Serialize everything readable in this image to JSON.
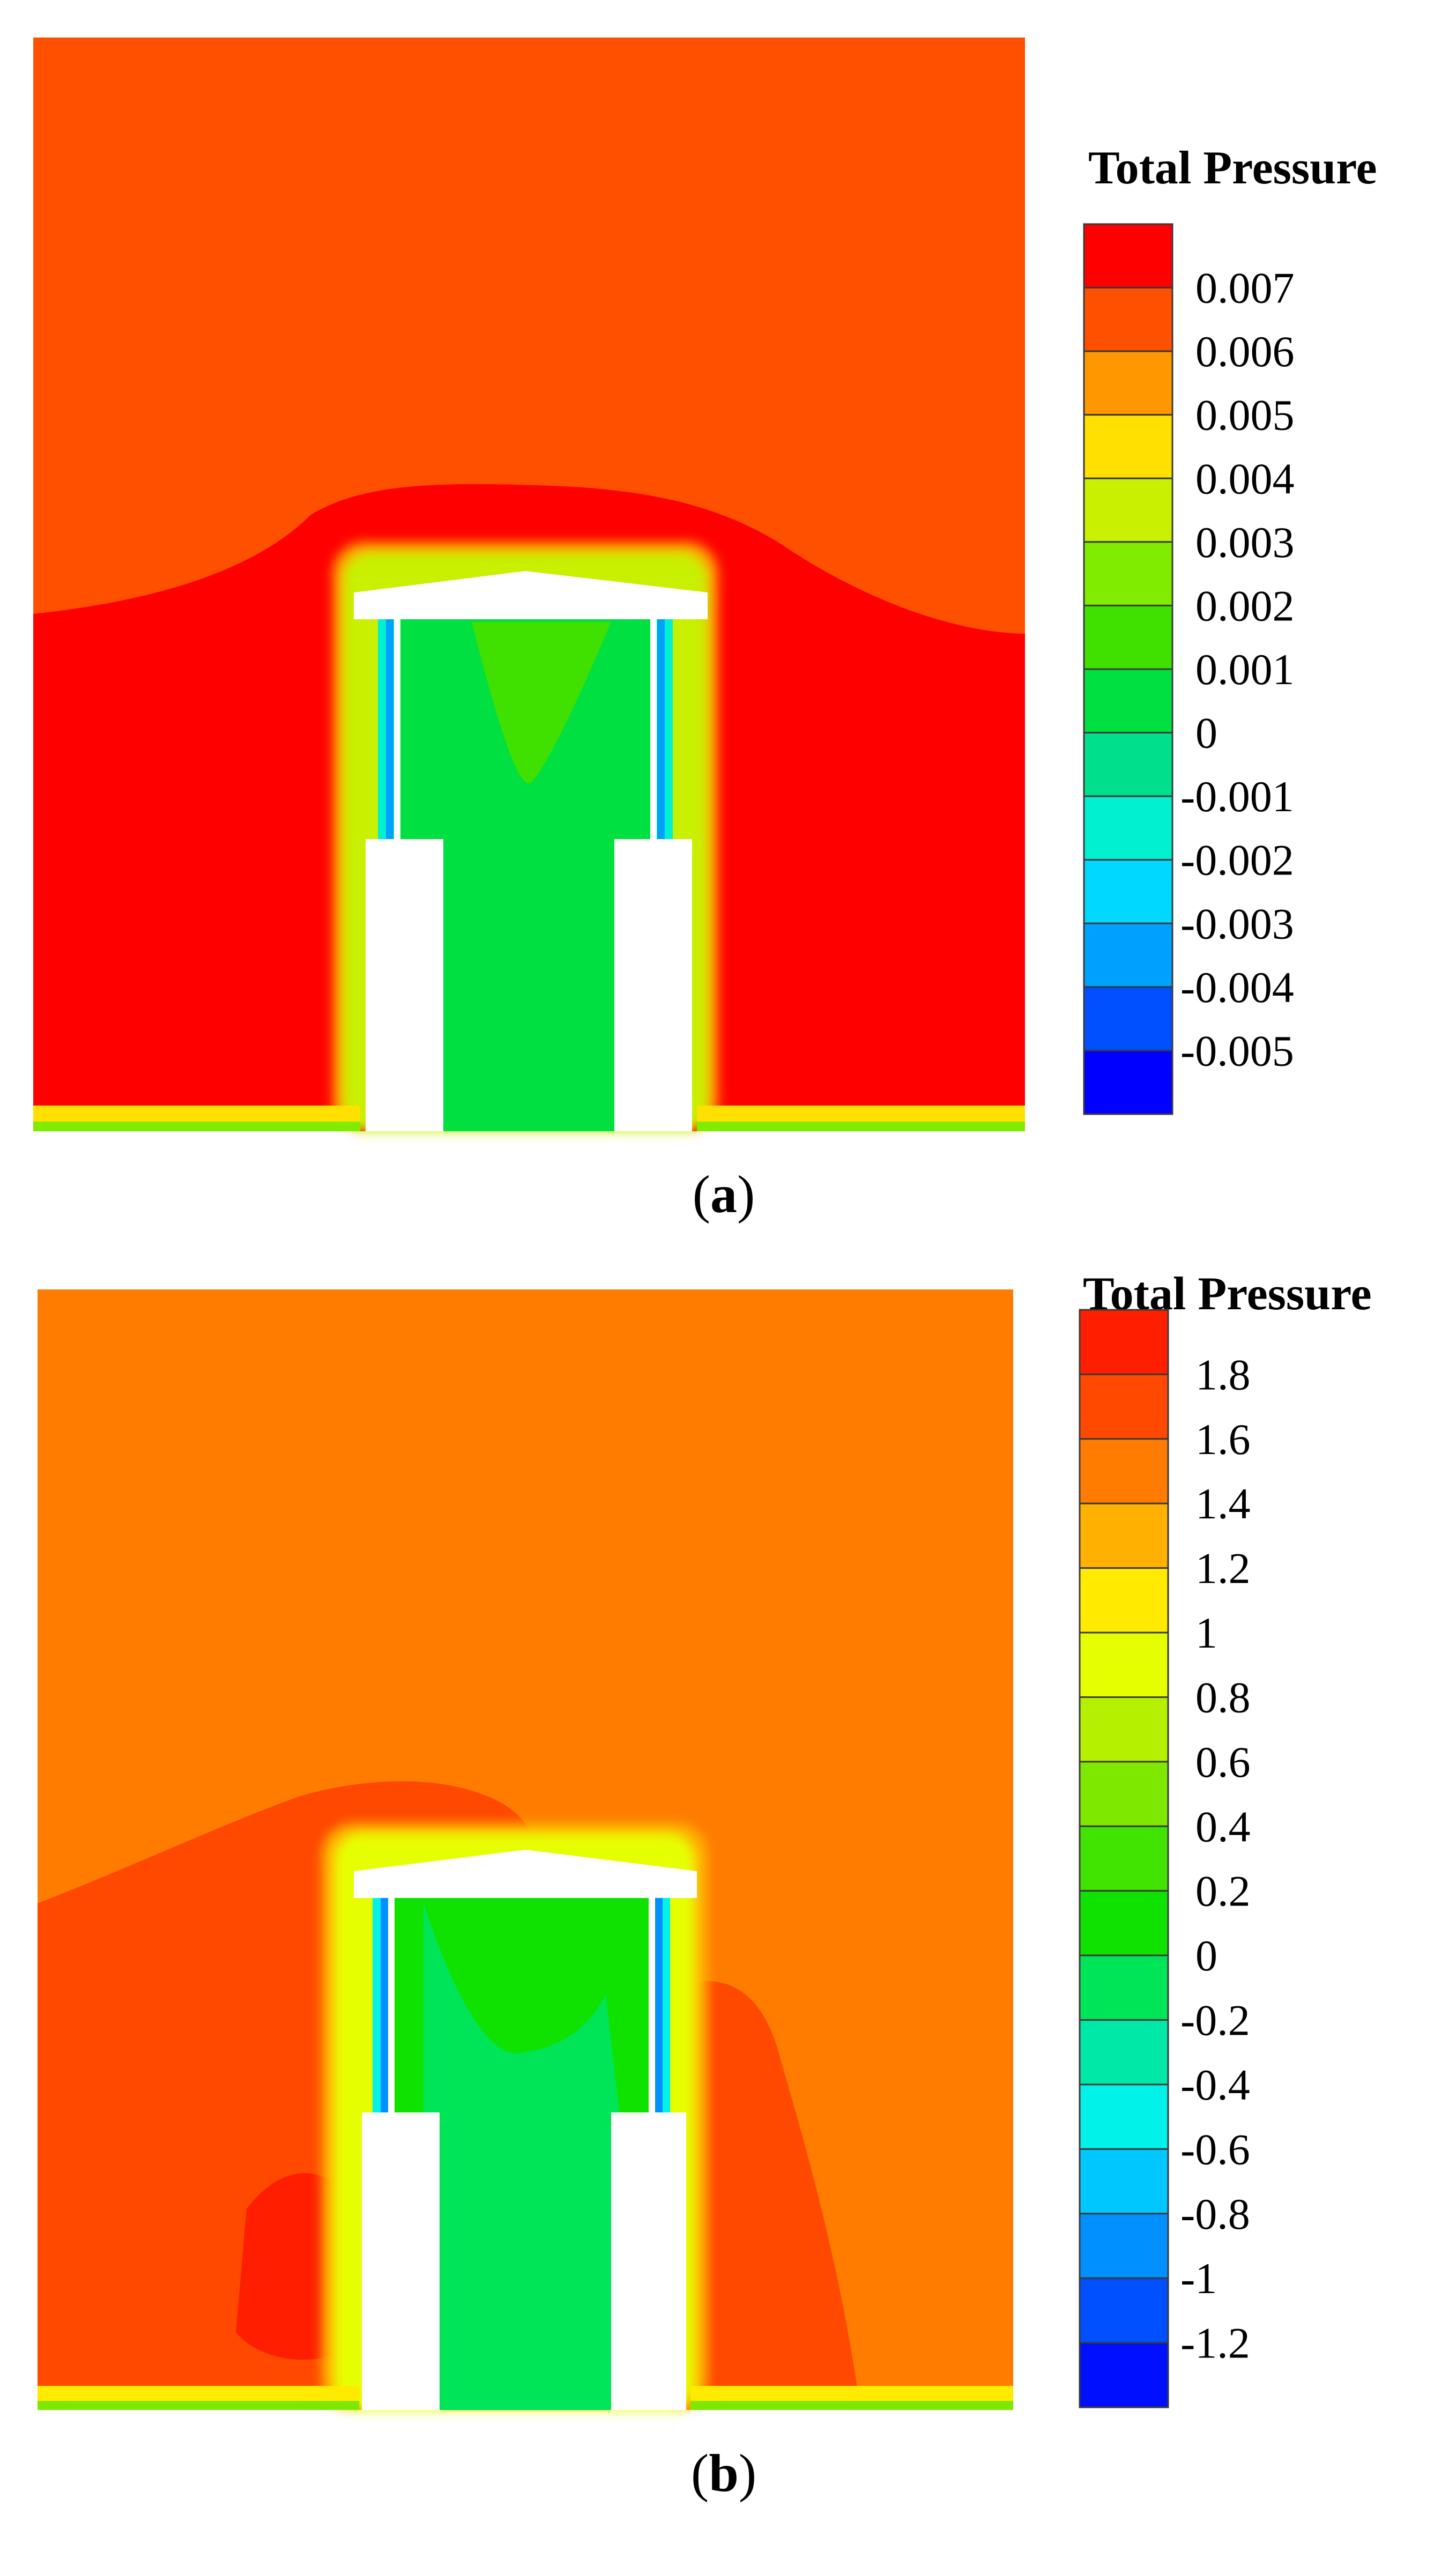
{
  "figure": {
    "panels": [
      {
        "id": "a",
        "caption_open": "(",
        "caption_letter": "a",
        "caption_close": ")",
        "legend_title": "Total Pressure"
      },
      {
        "id": "b",
        "caption_open": "(",
        "caption_letter": "b",
        "caption_close": ")",
        "legend_title": "Total Pressure"
      }
    ]
  },
  "chart_data": [
    {
      "type": "heatmap",
      "panel": "a",
      "title": "",
      "legend_title": "Total Pressure",
      "colorbar": {
        "levels": [
          "0.007",
          "0.006",
          "0.005",
          "0.004",
          "0.003",
          "0.002",
          "0.001",
          "0",
          "-0.001",
          "-0.002",
          "-0.003",
          "-0.004",
          "-0.005"
        ],
        "colors": [
          "#ff0000",
          "#ff5000",
          "#ff9800",
          "#ffe000",
          "#c8f000",
          "#80ec00",
          "#40e000",
          "#00e040",
          "#00e08c",
          "#00f0d0",
          "#00d8ff",
          "#00a0ff",
          "#0050ff",
          "#0000ff"
        ]
      },
      "field_colors": {
        "far_field": "#ff5000",
        "near_field": "#ff0000",
        "interior": "#00e040",
        "interior_center": "#40e000",
        "solid": "#ffffff"
      }
    },
    {
      "type": "heatmap",
      "panel": "b",
      "title": "",
      "legend_title": "Total Pressure",
      "colorbar": {
        "levels": [
          "1.8",
          "1.6",
          "1.4",
          "1.2",
          "1",
          "0.8",
          "0.6",
          "0.4",
          "0.2",
          "0",
          "-0.2",
          "-0.4",
          "-0.6",
          "-0.8",
          "-1",
          "-1.2"
        ],
        "colors": [
          "#ff1e00",
          "#ff4800",
          "#ff7c00",
          "#ffb000",
          "#ffea00",
          "#e6ff00",
          "#b4f000",
          "#7ee800",
          "#40e400",
          "#10e200",
          "#00e458",
          "#00e8a8",
          "#00f2e8",
          "#00c8ff",
          "#0090ff",
          "#0050ff",
          "#0010ff"
        ]
      },
      "field_colors": {
        "far_field": "#ff7c00",
        "near_field": "#ff4800",
        "interior": "#10e200",
        "interior_center": "#00e458",
        "solid": "#ffffff"
      }
    }
  ]
}
